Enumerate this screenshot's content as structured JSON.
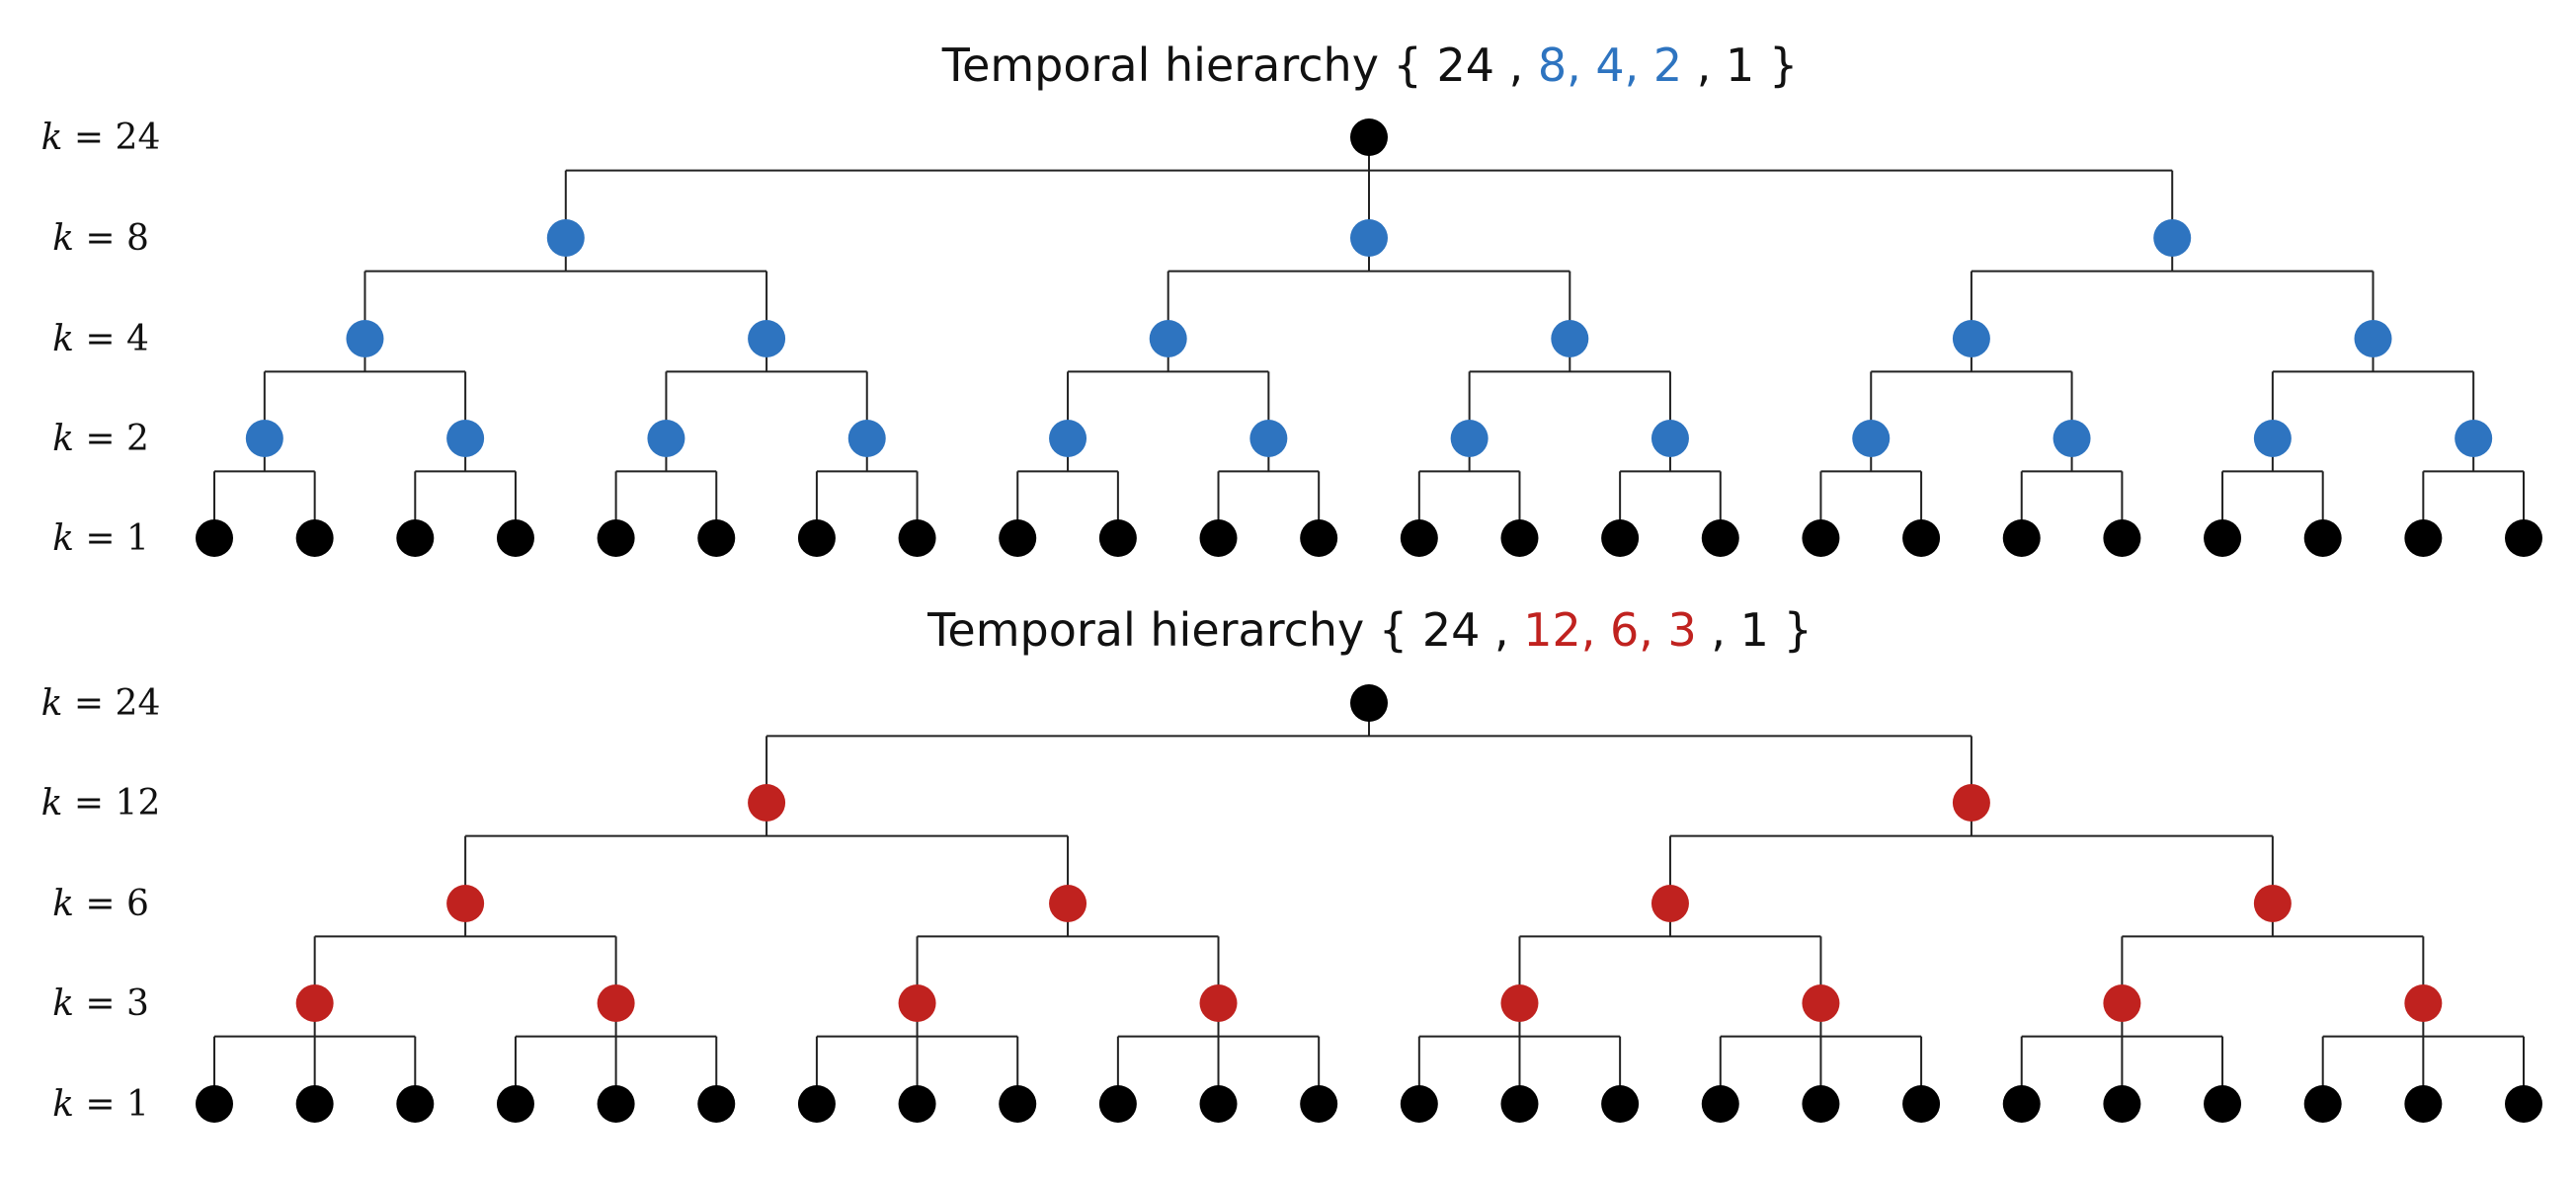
{
  "colors": {
    "root_leaf": "#000000",
    "blue": "#2e74c0",
    "red": "#c0221f",
    "edge": "#222222"
  },
  "diagrams": [
    {
      "title_prefix": "Temporal hierarchy ",
      "title_parts": [
        {
          "text": "{",
          "color": "black"
        },
        {
          "text": "24",
          "color": "black"
        },
        {
          "text": ", ",
          "color": "black"
        },
        {
          "text": "8, 4, 2",
          "color": "blue"
        },
        {
          "text": ", 1",
          "color": "black"
        },
        {
          "text": "}",
          "color": "black"
        }
      ],
      "levels": [
        24,
        8,
        4,
        2,
        1
      ],
      "branching": [
        3,
        2,
        2,
        2
      ],
      "level_colors": [
        "black",
        "blue",
        "blue",
        "blue",
        "black"
      ]
    },
    {
      "title_prefix": "Temporal hierarchy ",
      "title_parts": [
        {
          "text": "{",
          "color": "black"
        },
        {
          "text": "24",
          "color": "black"
        },
        {
          "text": ", ",
          "color": "black"
        },
        {
          "text": "12, 6, 3",
          "color": "red"
        },
        {
          "text": ", 1",
          "color": "black"
        },
        {
          "text": "}",
          "color": "black"
        }
      ],
      "levels": [
        24,
        12,
        6,
        3,
        1
      ],
      "branching": [
        2,
        2,
        2,
        3
      ],
      "level_colors": [
        "black",
        "red",
        "red",
        "red",
        "black"
      ]
    }
  ]
}
